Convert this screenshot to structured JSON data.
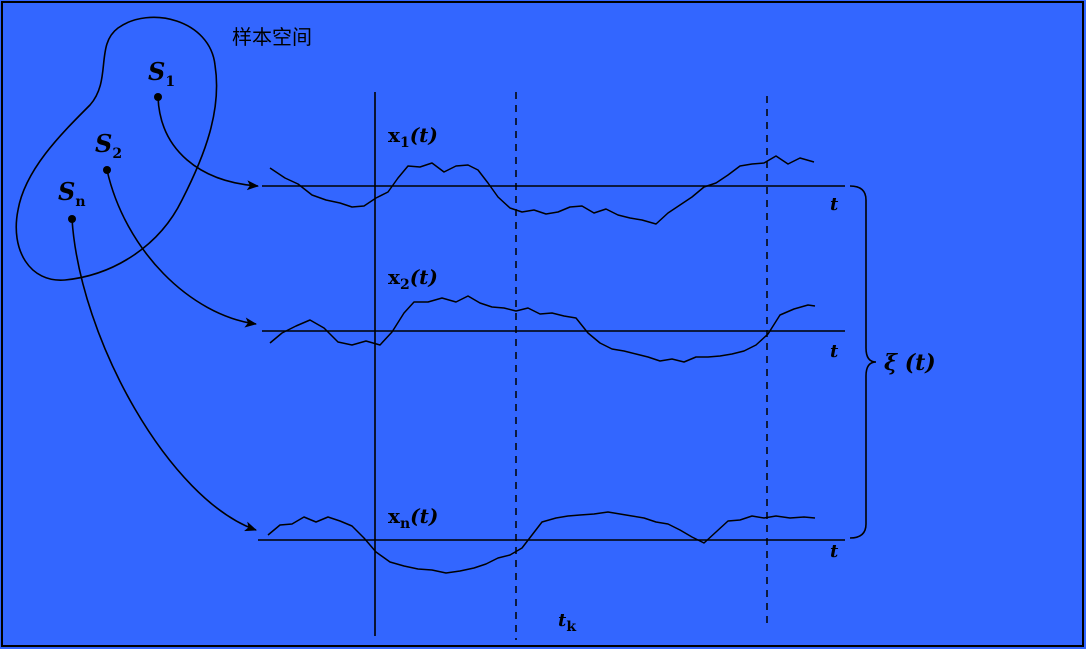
{
  "diagram": {
    "sample_space_label": "样本空间",
    "sample_points": [
      {
        "name": "S",
        "sub": "1"
      },
      {
        "name": "S",
        "sub": "2"
      },
      {
        "name": "S",
        "sub": "n"
      }
    ],
    "functions": [
      {
        "name": "x",
        "sub": "1",
        "arg": "(t)"
      },
      {
        "name": "x",
        "sub": "2",
        "arg": "(t)"
      },
      {
        "name": "x",
        "sub": "n",
        "arg": "(t)"
      }
    ],
    "time_axis_label": "t",
    "process_label": "ξ (t)",
    "time_instant": {
      "name": "t",
      "sub": "k"
    }
  }
}
